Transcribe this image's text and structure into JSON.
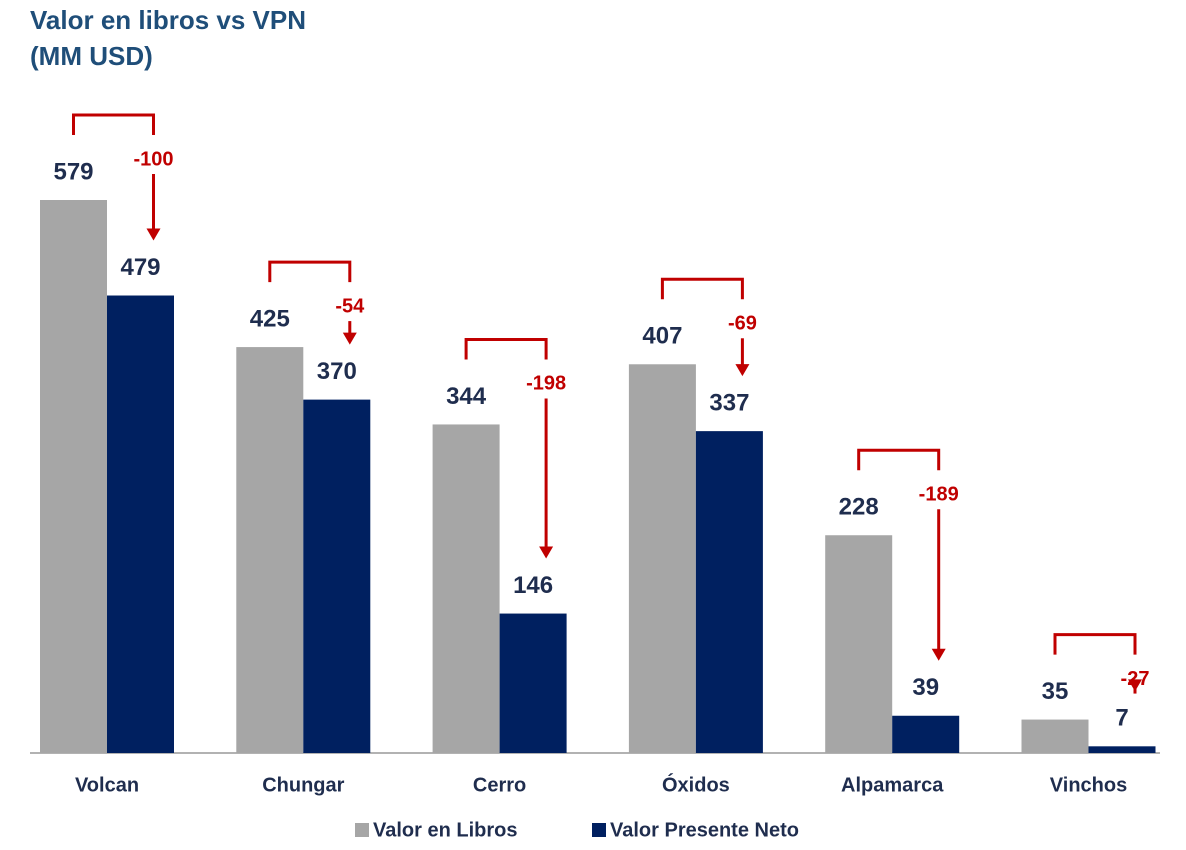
{
  "chart_data": {
    "type": "bar",
    "title": [
      "Valor en libros vs VPN",
      "(MM USD)"
    ],
    "categories": [
      "Volcan",
      "Chungar",
      "Cerro",
      "Óxidos",
      "Alpamarca",
      "Vinchos"
    ],
    "series": [
      {
        "name": "Valor en Libros",
        "color": "#a6a6a6",
        "values": [
          579,
          425,
          344,
          407,
          228,
          35
        ]
      },
      {
        "name": "Valor Presente Neto",
        "color": "#002060",
        "values": [
          479,
          370,
          146,
          337,
          39,
          7
        ]
      }
    ],
    "differences": [
      -100,
      -54,
      -198,
      -69,
      -189,
      -27
    ],
    "difference_color": "#c00000"
  }
}
